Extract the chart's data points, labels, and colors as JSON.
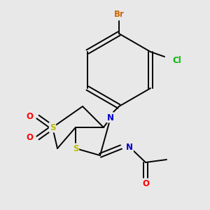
{
  "bg_color": "#e8e8e8",
  "atom_colors": {
    "C": "#000000",
    "N": "#0000cc",
    "S": "#bbbb00",
    "O": "#ff0000",
    "Br": "#cc6600",
    "Cl": "#00bb00"
  },
  "bond_color": "#000000",
  "lw": 1.4,
  "fs": 8.5
}
